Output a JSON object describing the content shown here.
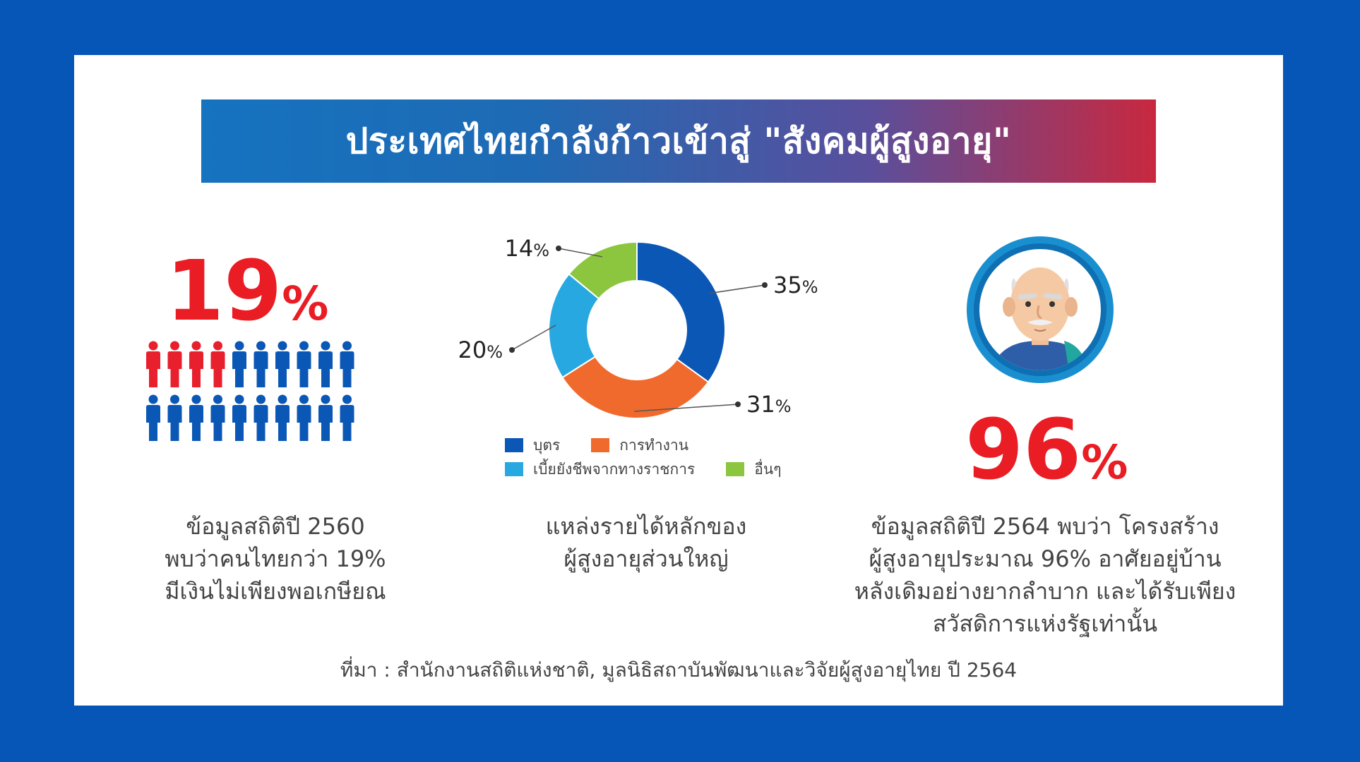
{
  "header": {
    "title": "ประเทศไทยกำลังก้าวเข้าสู่ \"สังคมผู้สูงอายุ\""
  },
  "left": {
    "stat_value": "19",
    "stat_unit": "%",
    "people_total": 20,
    "people_highlight": 4,
    "highlight_color": "#e8202e",
    "base_color": "#0a57b5",
    "desc": [
      "ข้อมูลสถิติปี 2560",
      "พบว่าคนไทยกว่า 19%",
      "มีเงินไม่เพียงพอเกษียณ"
    ]
  },
  "middle": {
    "desc": [
      "แหล่งรายได้หลักของ",
      "ผู้สูงอายุส่วนใหญ่"
    ]
  },
  "right": {
    "stat_value": "96",
    "stat_unit": "%",
    "desc": [
      "ข้อมูลสถิติปี 2564 พบว่า โครงสร้าง",
      "ผู้สูงอายุประมาณ 96% อาศัยอยู่บ้าน",
      "หลังเดิมอย่างยากลำบาก และได้รับเพียง",
      "สวัสดิการแห่งรัฐเท่านั้น"
    ]
  },
  "source": "ที่มา : สำนักงานสถิติแห่งชาติ, มูลนิธิสถาบันพัฒนาและวิจัยผู้สูงอายุไทย ปี 2564",
  "chart_data": {
    "type": "pie",
    "title": "",
    "series": [
      {
        "name": "บุตร",
        "value": 35,
        "label": "35",
        "color": "#0a57b5"
      },
      {
        "name": "การทำงาน",
        "value": 31,
        "label": "31",
        "color": "#f16a2d"
      },
      {
        "name": "เบี้ยยังชีพจากทางราชการ",
        "value": 20,
        "label": "20",
        "color": "#28a8e0"
      },
      {
        "name": "อื่นๆ",
        "value": 14,
        "label": "14",
        "color": "#8cc63f"
      }
    ],
    "unit": "%",
    "legend_position": "bottom"
  }
}
